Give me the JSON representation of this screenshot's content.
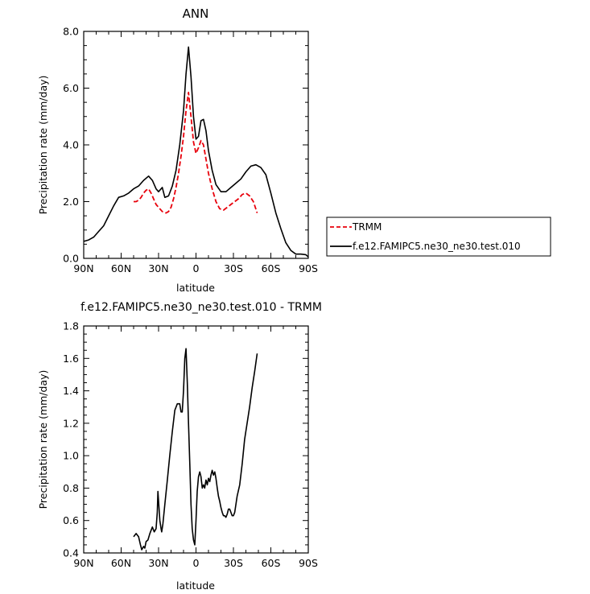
{
  "chart_data": [
    {
      "type": "line",
      "title": "ANN",
      "xlabel": "latitude",
      "ylabel": "Precipitation rate (mm/day)",
      "xlim": [
        90,
        -90
      ],
      "ylim": [
        0,
        8
      ],
      "x_ticks": [
        90,
        60,
        30,
        0,
        -30,
        -60,
        -90
      ],
      "x_tick_labels": [
        "90N",
        "60N",
        "30N",
        "0",
        "30S",
        "60S",
        "90S"
      ],
      "y_ticks": [
        0,
        2,
        4,
        6,
        8
      ],
      "y_tick_labels": [
        "0.0",
        "2.0",
        "4.0",
        "6.0",
        "8.0"
      ],
      "grid": false,
      "legend": {
        "placement": "right",
        "entries": [
          {
            "label": "TRMM",
            "color": "#e8000b",
            "dash": true
          },
          {
            "label": "f.e12.FAMIPC5.ne30_ne30.test.010",
            "color": "#000000",
            "dash": false
          }
        ]
      },
      "series": [
        {
          "name": "f.e12.FAMIPC5.ne30_ne30.test.010",
          "color": "#000000",
          "x": [
            90,
            86,
            82,
            78,
            74,
            70,
            66,
            62,
            58,
            54,
            50,
            46,
            42,
            38,
            35,
            32,
            30,
            27,
            25,
            22,
            19,
            16,
            13,
            10,
            8,
            6,
            4,
            2,
            0,
            -2,
            -4,
            -6,
            -8,
            -10,
            -13,
            -16,
            -20,
            -24,
            -28,
            -32,
            -36,
            -40,
            -44,
            -48,
            -52,
            -56,
            -60,
            -64,
            -68,
            -72,
            -76,
            -80,
            -84,
            -88,
            -90
          ],
          "y": [
            0.6,
            0.65,
            0.75,
            0.95,
            1.15,
            1.5,
            1.85,
            2.15,
            2.2,
            2.3,
            2.45,
            2.55,
            2.75,
            2.9,
            2.75,
            2.45,
            2.35,
            2.5,
            2.15,
            2.2,
            2.55,
            3.1,
            4.0,
            5.2,
            6.5,
            7.45,
            6.4,
            5.0,
            4.2,
            4.3,
            4.85,
            4.9,
            4.5,
            3.8,
            3.1,
            2.6,
            2.35,
            2.35,
            2.5,
            2.65,
            2.8,
            3.05,
            3.25,
            3.3,
            3.2,
            2.95,
            2.3,
            1.6,
            1.05,
            0.55,
            0.28,
            0.15,
            0.15,
            0.13,
            0.05
          ]
        },
        {
          "name": "TRMM",
          "color": "#e8000b",
          "x": [
            50,
            48,
            46,
            44,
            42,
            40,
            38,
            36,
            34,
            32,
            30,
            27,
            24,
            22,
            20,
            18,
            16,
            14,
            12,
            10,
            8,
            6,
            4,
            2,
            0,
            -2,
            -4,
            -6,
            -8,
            -10,
            -13,
            -16,
            -19,
            -22,
            -25,
            -28,
            -31,
            -34,
            -37,
            -40,
            -43,
            -46,
            -49
          ],
          "y": [
            2.0,
            2.0,
            2.05,
            2.15,
            2.3,
            2.4,
            2.45,
            2.3,
            2.1,
            1.9,
            1.8,
            1.65,
            1.6,
            1.65,
            1.8,
            2.1,
            2.5,
            3.0,
            3.6,
            4.3,
            5.2,
            5.85,
            5.0,
            4.1,
            3.7,
            3.9,
            4.15,
            4.0,
            3.5,
            3.0,
            2.45,
            2.0,
            1.75,
            1.7,
            1.8,
            1.9,
            2.0,
            2.1,
            2.25,
            2.3,
            2.2,
            2.0,
            1.6
          ]
        }
      ]
    },
    {
      "type": "line",
      "title": "f.e12.FAMIPC5.ne30_ne30.test.010 - TRMM",
      "xlabel": "latitude",
      "ylabel": "Precipitation rate (mm/day)",
      "xlim": [
        90,
        -90
      ],
      "ylim": [
        0.4,
        1.8
      ],
      "x_ticks": [
        90,
        60,
        30,
        0,
        -30,
        -60,
        -90
      ],
      "x_tick_labels": [
        "90N",
        "60N",
        "30N",
        "0",
        "30S",
        "60S",
        "90S"
      ],
      "y_ticks": [
        0.4,
        0.6,
        0.8,
        1.0,
        1.2,
        1.4,
        1.6,
        1.8
      ],
      "y_tick_labels": [
        "0.4",
        "0.6",
        "0.8",
        "1.0",
        "1.2",
        "1.4",
        "1.6",
        "1.8"
      ],
      "grid": false,
      "series": [
        {
          "name": "f.e12.FAMIPC5.ne30_ne30.test.010 - TRMM",
          "color": "#000000",
          "x": [
            50,
            48,
            46,
            44.5,
            43.5,
            42,
            41,
            40,
            38.5,
            37,
            35,
            33.5,
            32,
            31,
            30.5,
            30,
            29,
            28,
            27.5,
            26.5,
            25,
            23,
            21,
            19,
            17,
            15,
            13,
            12,
            11,
            10,
            9,
            8,
            7,
            6,
            5,
            4,
            3,
            2,
            1,
            0,
            -1,
            -2,
            -3,
            -4,
            -5,
            -6,
            -7,
            -8,
            -9,
            -10,
            -11,
            -12,
            -13,
            -14,
            -15,
            -16,
            -17,
            -18,
            -19,
            -20,
            -21,
            -22,
            -23,
            -24,
            -25,
            -26,
            -27,
            -28,
            -29,
            -30,
            -31,
            -32,
            -33,
            -35,
            -37,
            -39,
            -41,
            -43,
            -45,
            -47,
            -49
          ],
          "y": [
            0.5,
            0.52,
            0.5,
            0.45,
            0.42,
            0.44,
            0.43,
            0.47,
            0.48,
            0.52,
            0.56,
            0.53,
            0.55,
            0.65,
            0.78,
            0.72,
            0.6,
            0.55,
            0.53,
            0.58,
            0.7,
            0.85,
            1.0,
            1.15,
            1.28,
            1.32,
            1.32,
            1.27,
            1.27,
            1.4,
            1.6,
            1.66,
            1.45,
            1.2,
            0.95,
            0.7,
            0.55,
            0.48,
            0.45,
            0.6,
            0.78,
            0.87,
            0.9,
            0.87,
            0.8,
            0.82,
            0.8,
            0.85,
            0.82,
            0.86,
            0.84,
            0.88,
            0.91,
            0.88,
            0.9,
            0.86,
            0.8,
            0.75,
            0.72,
            0.68,
            0.65,
            0.63,
            0.63,
            0.62,
            0.64,
            0.67,
            0.67,
            0.65,
            0.63,
            0.63,
            0.65,
            0.7,
            0.75,
            0.82,
            0.95,
            1.1,
            1.2,
            1.3,
            1.42,
            1.52,
            1.63
          ]
        }
      ]
    }
  ]
}
